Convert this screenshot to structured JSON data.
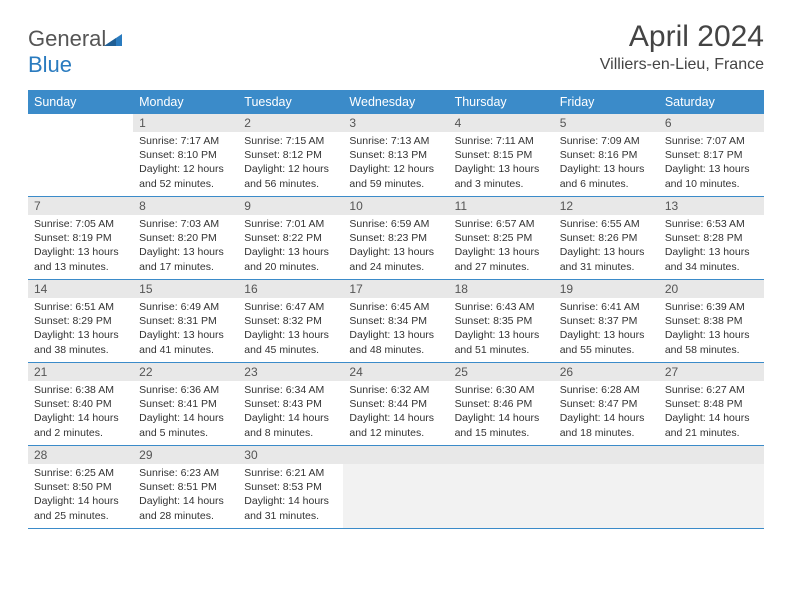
{
  "brand": {
    "name1": "General",
    "name2": "Blue"
  },
  "title": "April 2024",
  "location": "Villiers-en-Lieu, France",
  "colors": {
    "header_bg": "#3b8bc9",
    "header_text": "#ffffff",
    "daynum_bg": "#e8e8e8",
    "border": "#3b8bc9",
    "text": "#333333",
    "brand_gray": "#555555",
    "brand_blue": "#2a7bbf"
  },
  "weekdays": [
    "Sunday",
    "Monday",
    "Tuesday",
    "Wednesday",
    "Thursday",
    "Friday",
    "Saturday"
  ],
  "start_offset": 1,
  "days": [
    {
      "n": 1,
      "sunrise": "7:17 AM",
      "sunset": "8:10 PM",
      "daylight": "12 hours and 52 minutes."
    },
    {
      "n": 2,
      "sunrise": "7:15 AM",
      "sunset": "8:12 PM",
      "daylight": "12 hours and 56 minutes."
    },
    {
      "n": 3,
      "sunrise": "7:13 AM",
      "sunset": "8:13 PM",
      "daylight": "12 hours and 59 minutes."
    },
    {
      "n": 4,
      "sunrise": "7:11 AM",
      "sunset": "8:15 PM",
      "daylight": "13 hours and 3 minutes."
    },
    {
      "n": 5,
      "sunrise": "7:09 AM",
      "sunset": "8:16 PM",
      "daylight": "13 hours and 6 minutes."
    },
    {
      "n": 6,
      "sunrise": "7:07 AM",
      "sunset": "8:17 PM",
      "daylight": "13 hours and 10 minutes."
    },
    {
      "n": 7,
      "sunrise": "7:05 AM",
      "sunset": "8:19 PM",
      "daylight": "13 hours and 13 minutes."
    },
    {
      "n": 8,
      "sunrise": "7:03 AM",
      "sunset": "8:20 PM",
      "daylight": "13 hours and 17 minutes."
    },
    {
      "n": 9,
      "sunrise": "7:01 AM",
      "sunset": "8:22 PM",
      "daylight": "13 hours and 20 minutes."
    },
    {
      "n": 10,
      "sunrise": "6:59 AM",
      "sunset": "8:23 PM",
      "daylight": "13 hours and 24 minutes."
    },
    {
      "n": 11,
      "sunrise": "6:57 AM",
      "sunset": "8:25 PM",
      "daylight": "13 hours and 27 minutes."
    },
    {
      "n": 12,
      "sunrise": "6:55 AM",
      "sunset": "8:26 PM",
      "daylight": "13 hours and 31 minutes."
    },
    {
      "n": 13,
      "sunrise": "6:53 AM",
      "sunset": "8:28 PM",
      "daylight": "13 hours and 34 minutes."
    },
    {
      "n": 14,
      "sunrise": "6:51 AM",
      "sunset": "8:29 PM",
      "daylight": "13 hours and 38 minutes."
    },
    {
      "n": 15,
      "sunrise": "6:49 AM",
      "sunset": "8:31 PM",
      "daylight": "13 hours and 41 minutes."
    },
    {
      "n": 16,
      "sunrise": "6:47 AM",
      "sunset": "8:32 PM",
      "daylight": "13 hours and 45 minutes."
    },
    {
      "n": 17,
      "sunrise": "6:45 AM",
      "sunset": "8:34 PM",
      "daylight": "13 hours and 48 minutes."
    },
    {
      "n": 18,
      "sunrise": "6:43 AM",
      "sunset": "8:35 PM",
      "daylight": "13 hours and 51 minutes."
    },
    {
      "n": 19,
      "sunrise": "6:41 AM",
      "sunset": "8:37 PM",
      "daylight": "13 hours and 55 minutes."
    },
    {
      "n": 20,
      "sunrise": "6:39 AM",
      "sunset": "8:38 PM",
      "daylight": "13 hours and 58 minutes."
    },
    {
      "n": 21,
      "sunrise": "6:38 AM",
      "sunset": "8:40 PM",
      "daylight": "14 hours and 2 minutes."
    },
    {
      "n": 22,
      "sunrise": "6:36 AM",
      "sunset": "8:41 PM",
      "daylight": "14 hours and 5 minutes."
    },
    {
      "n": 23,
      "sunrise": "6:34 AM",
      "sunset": "8:43 PM",
      "daylight": "14 hours and 8 minutes."
    },
    {
      "n": 24,
      "sunrise": "6:32 AM",
      "sunset": "8:44 PM",
      "daylight": "14 hours and 12 minutes."
    },
    {
      "n": 25,
      "sunrise": "6:30 AM",
      "sunset": "8:46 PM",
      "daylight": "14 hours and 15 minutes."
    },
    {
      "n": 26,
      "sunrise": "6:28 AM",
      "sunset": "8:47 PM",
      "daylight": "14 hours and 18 minutes."
    },
    {
      "n": 27,
      "sunrise": "6:27 AM",
      "sunset": "8:48 PM",
      "daylight": "14 hours and 21 minutes."
    },
    {
      "n": 28,
      "sunrise": "6:25 AM",
      "sunset": "8:50 PM",
      "daylight": "14 hours and 25 minutes."
    },
    {
      "n": 29,
      "sunrise": "6:23 AM",
      "sunset": "8:51 PM",
      "daylight": "14 hours and 28 minutes."
    },
    {
      "n": 30,
      "sunrise": "6:21 AM",
      "sunset": "8:53 PM",
      "daylight": "14 hours and 31 minutes."
    }
  ],
  "labels": {
    "sunrise": "Sunrise:",
    "sunset": "Sunset:",
    "daylight": "Daylight:"
  }
}
